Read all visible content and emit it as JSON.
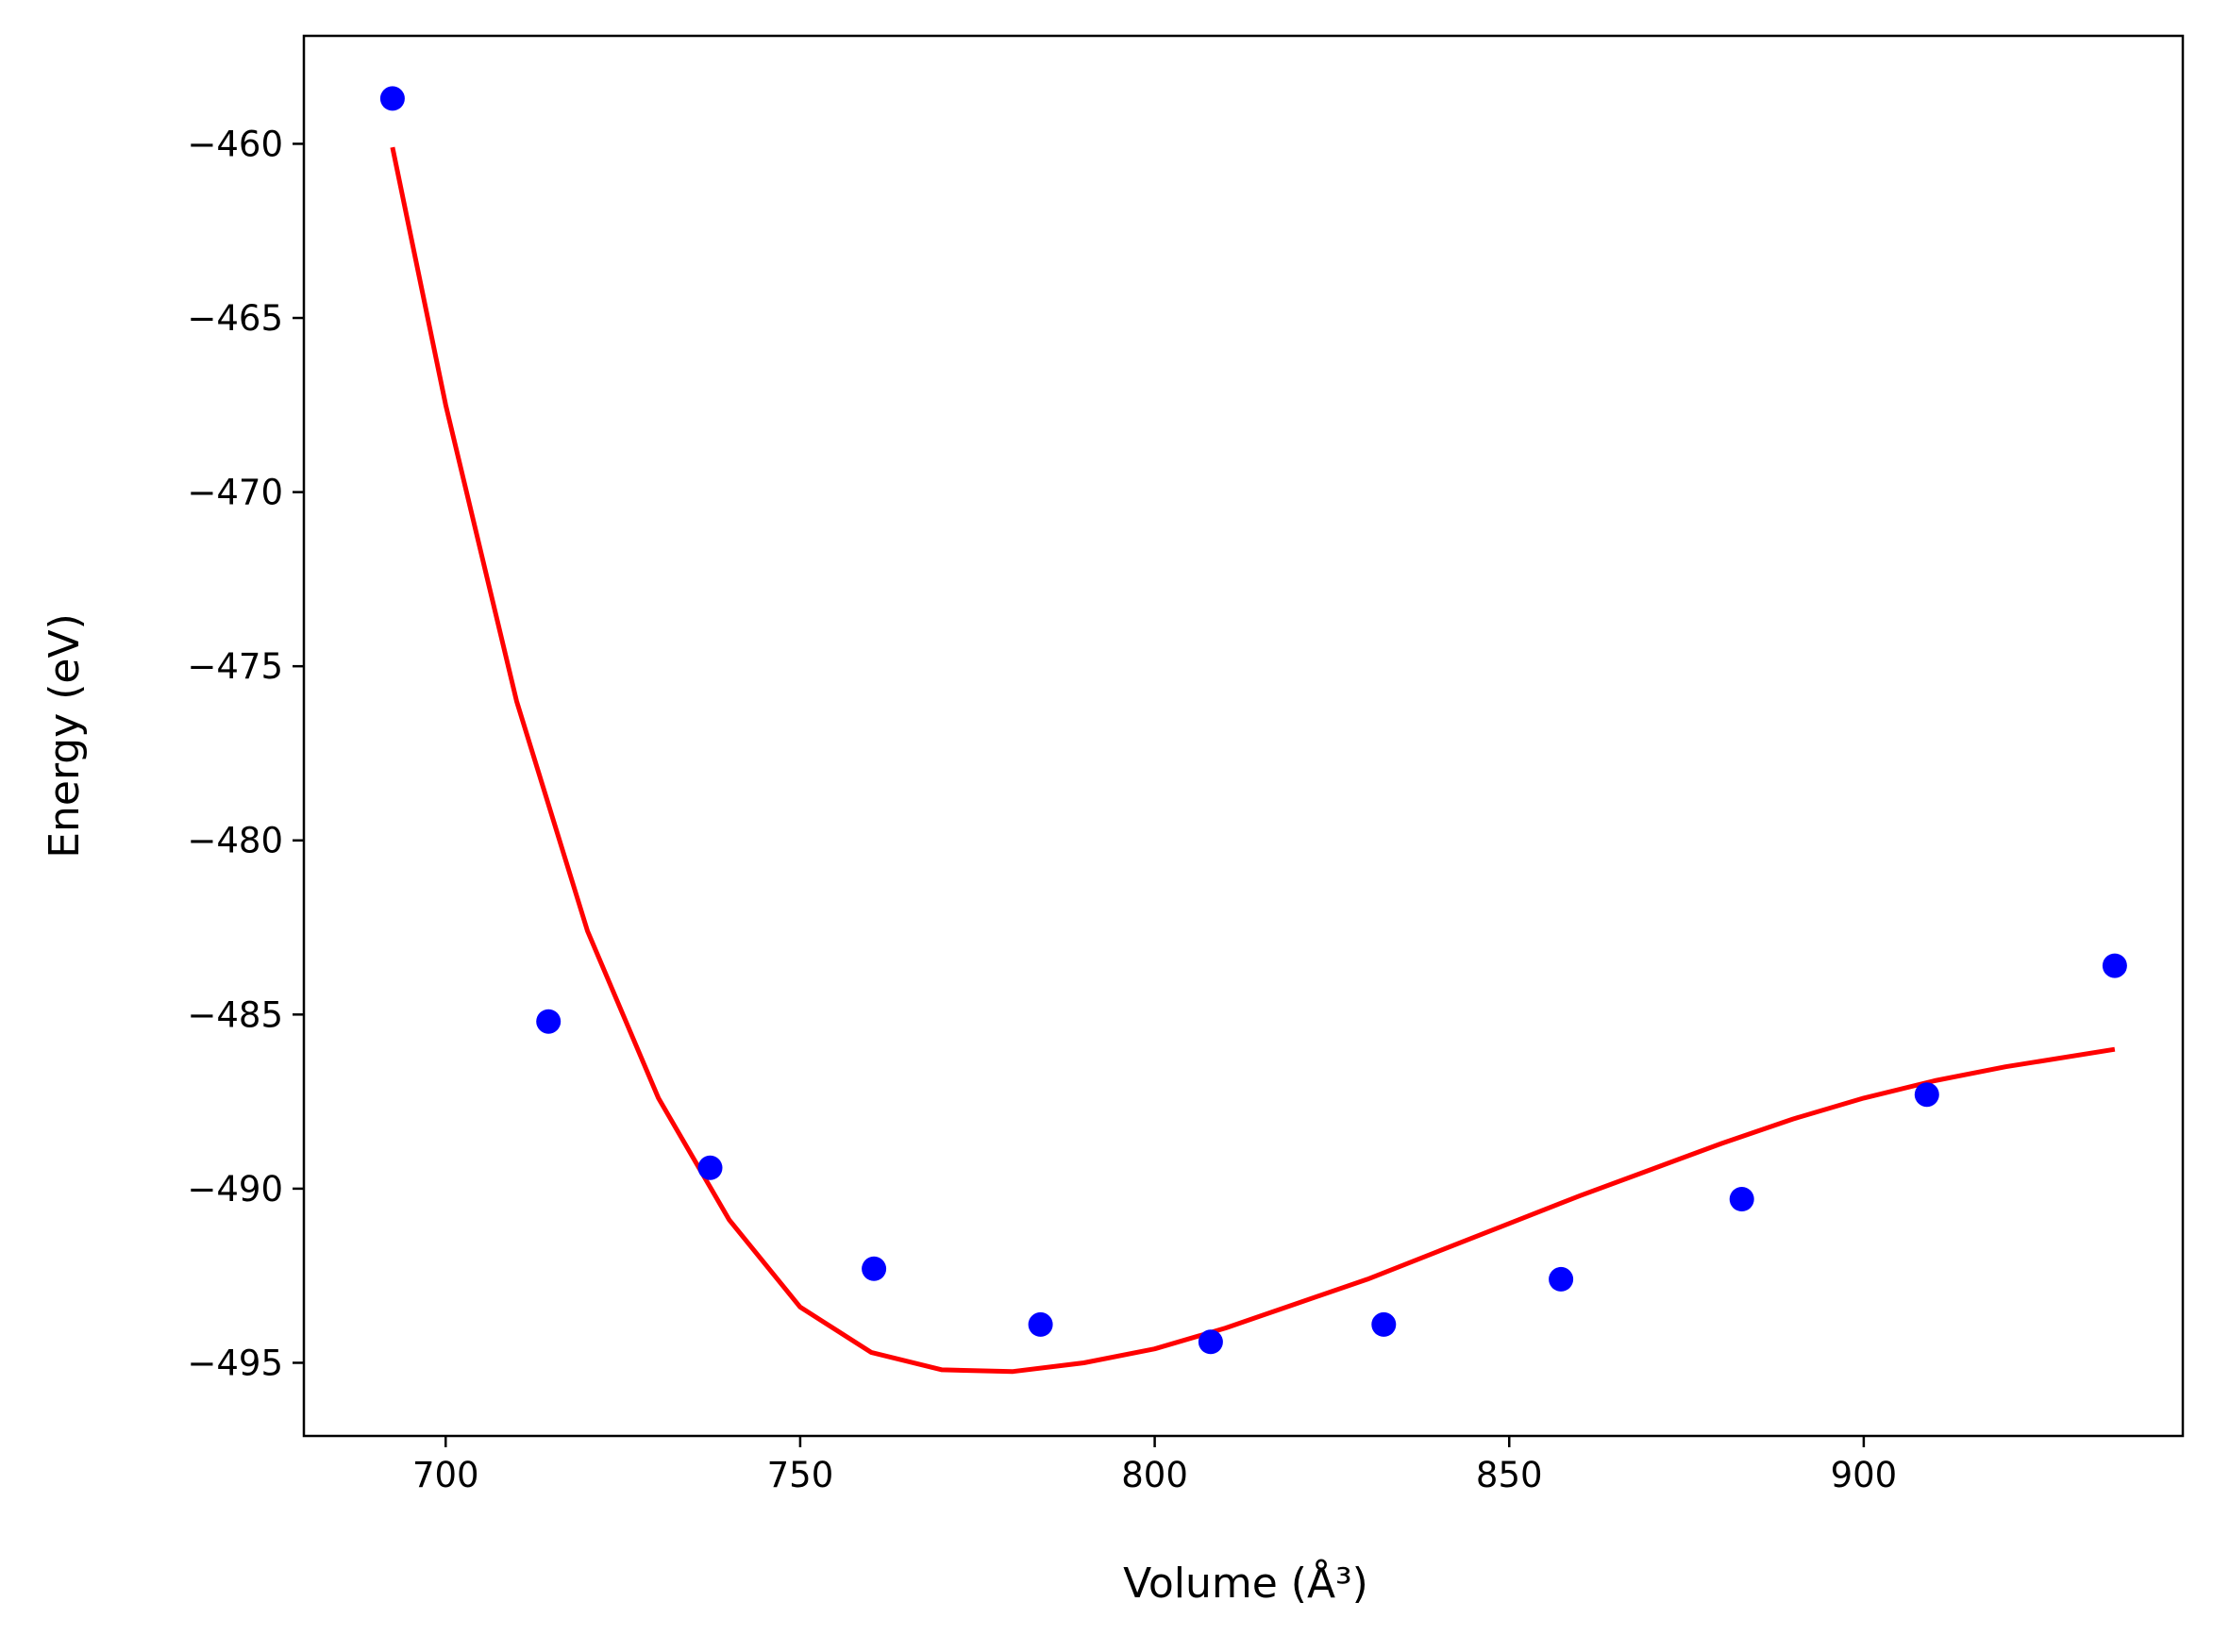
{
  "chart_data": {
    "type": "scatter",
    "title": "",
    "xlabel": "Volume (Å³)",
    "ylabel": "Energy (eV)",
    "xlim": [
      680,
      945
    ],
    "ylim": [
      -497.1,
      -456.9
    ],
    "x_ticks": [
      700,
      750,
      800,
      850,
      900
    ],
    "y_ticks": [
      -460,
      -465,
      -470,
      -475,
      -480,
      -485,
      -490,
      -495
    ],
    "x_tick_labels": [
      "700",
      "750",
      "800",
      "850",
      "900"
    ],
    "y_tick_labels": [
      "−460",
      "−465",
      "−470",
      "−475",
      "−480",
      "−485",
      "−490",
      "−495"
    ],
    "grid": false,
    "legend": "none",
    "series": [
      {
        "type": "scatter",
        "color": "#0000ff",
        "x": [
          692.5,
          714.5,
          737.3,
          760.4,
          783.9,
          807.9,
          832.3,
          857.3,
          882.8,
          908.9,
          935.4
        ],
        "y": [
          -458.7,
          -485.2,
          -489.4,
          -492.3,
          -493.9,
          -494.4,
          -493.9,
          -492.6,
          -490.3,
          -487.3,
          -483.6
        ]
      },
      {
        "type": "line",
        "color": "#ff0000",
        "x": [
          692.5,
          700,
          710,
          720,
          730,
          740,
          750,
          760,
          770,
          780,
          790,
          800,
          810,
          820,
          830,
          840,
          850,
          860,
          870,
          880,
          890,
          900,
          910,
          920,
          935.4
        ],
        "y": [
          -460.1,
          -467.5,
          -476.0,
          -482.6,
          -487.4,
          -490.9,
          -493.4,
          -494.7,
          -495.2,
          -495.25,
          -495.0,
          -494.6,
          -494.0,
          -493.3,
          -492.6,
          -491.8,
          -491.0,
          -490.2,
          -489.45,
          -488.7,
          -488.0,
          -487.4,
          -486.9,
          -486.5,
          -486.0
        ]
      }
    ]
  }
}
